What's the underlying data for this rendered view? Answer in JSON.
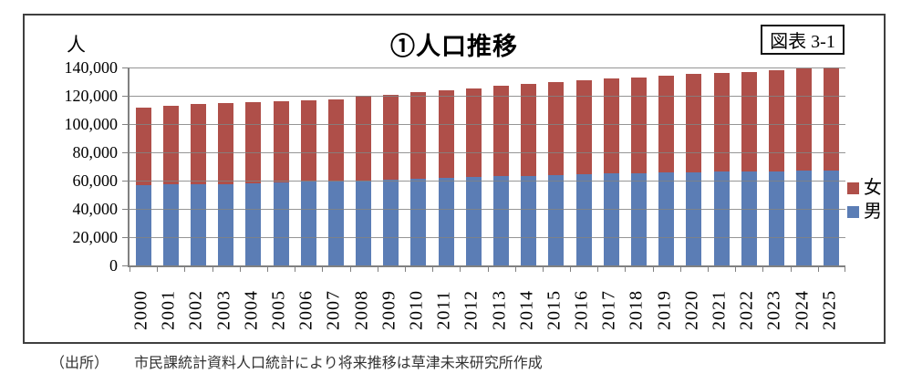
{
  "figure": {
    "label": "図表 3-1"
  },
  "chart": {
    "title": "①人口推移",
    "unit_label": "人",
    "y_ticks": [
      "140,000",
      "120,000",
      "100,000",
      "80,000",
      "60,000",
      "40,000",
      "20,000",
      "0"
    ]
  },
  "legend": {
    "items": [
      {
        "label": "女",
        "color": "#AF4F49"
      },
      {
        "label": "男",
        "color": "#5B7DB5"
      }
    ]
  },
  "source": {
    "prefix": "（出所）",
    "text": "市民課統計資料人口統計により将来推移は草津未来研究所作成"
  },
  "chart_data": {
    "type": "bar",
    "stacked": true,
    "title": "①人口推移",
    "ylabel": "人",
    "ylim": [
      0,
      140000
    ],
    "ytick_step": 20000,
    "grid": true,
    "legend_position": "right",
    "categories": [
      2000,
      2001,
      2002,
      2003,
      2004,
      2005,
      2006,
      2007,
      2008,
      2009,
      2010,
      2011,
      2012,
      2013,
      2014,
      2015,
      2016,
      2017,
      2018,
      2019,
      2020,
      2021,
      2022,
      2023,
      2024,
      2025
    ],
    "series": [
      {
        "name": "男",
        "color": "#5B7DB5",
        "values": [
          56800,
          57200,
          57300,
          57500,
          57900,
          58700,
          59200,
          59600,
          60200,
          60700,
          61300,
          61900,
          62600,
          63000,
          63400,
          64100,
          64500,
          64900,
          65200,
          65600,
          66000,
          66200,
          66400,
          66700,
          67100,
          67300
        ]
      },
      {
        "name": "女",
        "color": "#AF4F49",
        "values": [
          54900,
          56000,
          56700,
          57200,
          57400,
          57300,
          57400,
          58100,
          59800,
          59700,
          61300,
          62000,
          62800,
          64100,
          65200,
          65300,
          66700,
          67300,
          67800,
          68600,
          69400,
          70100,
          70300,
          71500,
          72400,
          72700
        ]
      }
    ]
  }
}
